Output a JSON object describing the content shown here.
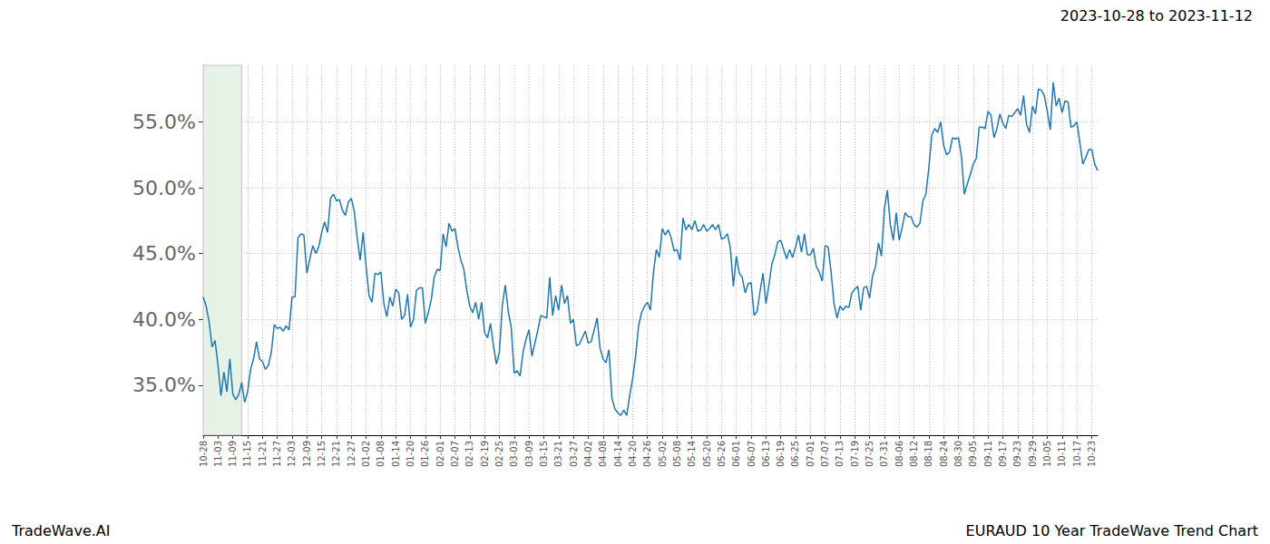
{
  "chart_data": {
    "type": "line",
    "title": "2023-10-28 to 2023-11-12",
    "source": "TradeWave.AI",
    "caption": "EURAUD 10 Year TradeWave Trend Chart",
    "categories": [
      "10-28",
      null,
      null,
      null,
      null,
      "11-03",
      null,
      null,
      null,
      null,
      "11-09",
      null,
      null,
      null,
      null,
      "11-15",
      null,
      null,
      null,
      null,
      "11-21",
      null,
      null,
      null,
      null,
      "11-27",
      null,
      null,
      null,
      null,
      "12-03",
      null,
      null,
      null,
      null,
      "12-09",
      null,
      null,
      null,
      null,
      "12-15",
      null,
      null,
      null,
      null,
      "12-21",
      null,
      null,
      null,
      null,
      "12-27",
      null,
      null,
      null,
      null,
      "01-02",
      null,
      null,
      null,
      null,
      "01-08",
      null,
      null,
      null,
      null,
      "01-14",
      null,
      null,
      null,
      null,
      "01-20",
      null,
      null,
      null,
      null,
      "01-26",
      null,
      null,
      null,
      null,
      "02-01",
      null,
      null,
      null,
      null,
      "02-07",
      null,
      null,
      null,
      null,
      "02-13",
      null,
      null,
      null,
      null,
      "02-19",
      null,
      null,
      null,
      null,
      "02-25",
      null,
      null,
      null,
      null,
      "03-03",
      null,
      null,
      null,
      null,
      "03-09",
      null,
      null,
      null,
      null,
      "03-15",
      null,
      null,
      null,
      null,
      "03-21",
      null,
      null,
      null,
      null,
      "03-27",
      null,
      null,
      null,
      null,
      "04-02",
      null,
      null,
      null,
      null,
      "04-08",
      null,
      null,
      null,
      null,
      "04-14",
      null,
      null,
      null,
      null,
      "04-20",
      null,
      null,
      null,
      null,
      "04-26",
      null,
      null,
      null,
      null,
      "05-02",
      null,
      null,
      null,
      null,
      "05-08",
      null,
      null,
      null,
      null,
      "05-14",
      null,
      null,
      null,
      null,
      "05-20",
      null,
      null,
      null,
      null,
      "05-26",
      null,
      null,
      null,
      null,
      "06-01",
      null,
      null,
      null,
      null,
      "06-07",
      null,
      null,
      null,
      null,
      "06-13",
      null,
      null,
      null,
      null,
      "06-19",
      null,
      null,
      null,
      null,
      "06-25",
      null,
      null,
      null,
      null,
      "07-01",
      null,
      null,
      null,
      null,
      "07-07",
      null,
      null,
      null,
      null,
      "07-13",
      null,
      null,
      null,
      null,
      "07-19",
      null,
      null,
      null,
      null,
      "07-25",
      null,
      null,
      null,
      null,
      "07-31",
      null,
      null,
      null,
      null,
      "08-06",
      null,
      null,
      null,
      null,
      "08-12",
      null,
      null,
      null,
      null,
      "08-18",
      null,
      null,
      null,
      null,
      "08-24",
      null,
      null,
      null,
      null,
      "08-30",
      null,
      null,
      null,
      null,
      "09-05",
      null,
      null,
      null,
      null,
      "09-11",
      null,
      null,
      null,
      null,
      "09-17",
      null,
      null,
      null,
      null,
      "09-23",
      null,
      null,
      null,
      null,
      "09-29",
      null,
      null,
      null,
      null,
      "10-05",
      null,
      null,
      null,
      null,
      "10-11",
      null,
      null,
      null,
      null,
      "10-17",
      null,
      null,
      null,
      null,
      "10-23",
      null,
      null
    ],
    "values": [
      41.7,
      41.0,
      39.8,
      37.9,
      38.4,
      36.5,
      34.2,
      36.0,
      34.5,
      37.0,
      34.3,
      33.9,
      34.3,
      35.2,
      33.7,
      34.5,
      36.2,
      37.0,
      38.3,
      37.0,
      36.8,
      36.2,
      36.5,
      37.5,
      39.6,
      39.3,
      39.4,
      39.1,
      39.5,
      39.2,
      41.7,
      41.7,
      46.2,
      46.5,
      46.4,
      43.5,
      44.6,
      45.6,
      45.0,
      45.5,
      46.6,
      47.4,
      46.6,
      49.2,
      49.5,
      49.0,
      49.1,
      48.3,
      47.9,
      48.9,
      49.2,
      48.2,
      46.2,
      44.5,
      46.6,
      44.0,
      41.8,
      41.3,
      43.5,
      43.4,
      43.6,
      41.2,
      40.2,
      41.7,
      41.0,
      42.3,
      42.0,
      40.0,
      40.3,
      41.9,
      39.4,
      40.0,
      42.2,
      42.4,
      42.4,
      39.7,
      40.5,
      41.5,
      43.2,
      43.8,
      43.7,
      46.5,
      45.5,
      47.3,
      46.7,
      46.9,
      45.5,
      44.5,
      43.8,
      42.2,
      41.0,
      40.5,
      41.3,
      40.0,
      41.3,
      39.0,
      38.6,
      39.7,
      38.0,
      36.6,
      37.5,
      41.1,
      42.6,
      40.6,
      39.4,
      35.9,
      36.1,
      35.7,
      37.5,
      38.5,
      39.2,
      37.2,
      38.2,
      39.2,
      40.3,
      40.2,
      40.1,
      43.2,
      40.3,
      41.8,
      40.7,
      42.6,
      41.2,
      41.8,
      39.7,
      40.0,
      38.0,
      38.1,
      38.6,
      39.1,
      38.2,
      38.3,
      39.2,
      40.1,
      37.8,
      37.0,
      36.7,
      37.7,
      34.0,
      33.2,
      32.9,
      32.7,
      33.1,
      32.7,
      34.2,
      35.5,
      37.2,
      39.5,
      40.5,
      41.0,
      41.3,
      40.7,
      43.5,
      45.3,
      44.7,
      46.9,
      46.4,
      46.8,
      46.2,
      45.2,
      45.3,
      44.5,
      47.7,
      46.8,
      47.2,
      46.8,
      47.5,
      46.7,
      46.8,
      47.2,
      46.7,
      46.9,
      47.2,
      46.8,
      47.2,
      46.1,
      46.2,
      46.5,
      45.4,
      42.5,
      44.8,
      43.5,
      43.2,
      42.0,
      42.7,
      42.8,
      40.3,
      40.6,
      42.1,
      43.5,
      41.2,
      42.6,
      44.2,
      44.9,
      45.9,
      46.0,
      45.3,
      44.6,
      45.3,
      44.7,
      45.5,
      46.4,
      45.1,
      46.5,
      44.9,
      44.9,
      45.4,
      44.0,
      43.6,
      42.9,
      45.6,
      45.5,
      43.6,
      41.2,
      40.1,
      41.0,
      40.7,
      41.0,
      40.9,
      42.0,
      42.3,
      42.5,
      40.7,
      42.4,
      42.5,
      41.6,
      43.3,
      44.0,
      45.8,
      44.8,
      48.4,
      49.8,
      47.2,
      46.0,
      48.1,
      46.0,
      47.0,
      48.1,
      47.8,
      47.8,
      47.2,
      47.0,
      47.3,
      49.0,
      49.5,
      51.5,
      54.0,
      54.5,
      54.2,
      55.0,
      53.2,
      52.5,
      52.7,
      53.8,
      53.7,
      53.8,
      52.4,
      49.5,
      50.3,
      51.0,
      51.8,
      52.2,
      54.6,
      54.6,
      54.5,
      55.8,
      55.5,
      53.8,
      54.5,
      55.6,
      54.9,
      54.5,
      55.5,
      55.4,
      55.7,
      56.0,
      55.5,
      57.0,
      54.8,
      54.2,
      56.2,
      55.6,
      57.5,
      57.4,
      57.0,
      55.8,
      54.4,
      58.0,
      56.2,
      56.8,
      55.7,
      56.6,
      56.5,
      54.6,
      54.7,
      55.0,
      53.4,
      51.8,
      52.3,
      52.9,
      52.9,
      51.8,
      51.3
    ],
    "color": "#1f77b4",
    "highlight": {
      "from": 0,
      "to": 13,
      "color": "#e6f2e6"
    },
    "ylim": [
      31.2,
      59.3
    ],
    "yticks": [
      {
        "value": 35,
        "label": "35.0%"
      },
      {
        "value": 40,
        "label": "40.0%"
      },
      {
        "value": 45,
        "label": "45.0%"
      },
      {
        "value": 50,
        "label": "50.0%"
      },
      {
        "value": 55,
        "label": "55.0%"
      }
    ],
    "grid": true
  }
}
